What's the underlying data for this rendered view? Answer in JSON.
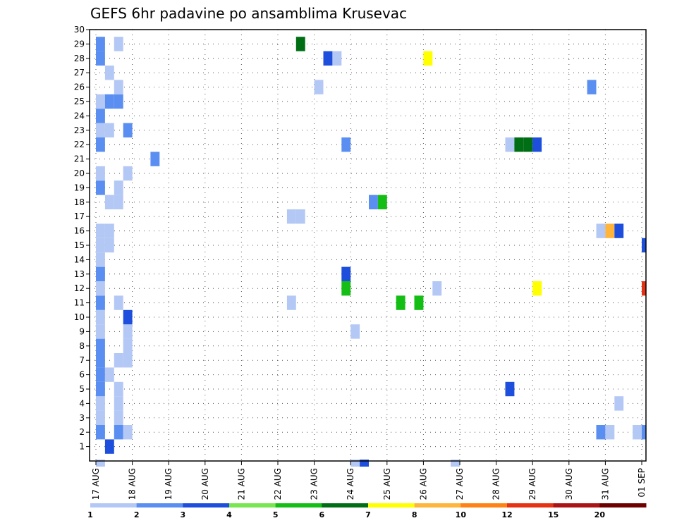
{
  "chart_data": {
    "type": "heatmap",
    "title": "GEFS 6hr padavine po ansamblima Krusevac",
    "xlabel": "",
    "ylabel": "",
    "x_tick_labels": [
      "17 AUG",
      "18 AUG",
      "19 AUG",
      "20 AUG",
      "21 AUG",
      "22 AUG",
      "23 AUG",
      "24 AUG",
      "25 AUG",
      "26 AUG",
      "27 AUG",
      "28 AUG",
      "29 AUG",
      "30 AUG",
      "31 AUG",
      "01 SEP"
    ],
    "y_range": [
      0,
      30
    ],
    "y_tick_labels": [
      "1",
      "2",
      "3",
      "4",
      "5",
      "6",
      "7",
      "8",
      "9",
      "10",
      "11",
      "12",
      "13",
      "14",
      "15",
      "16",
      "17",
      "18",
      "19",
      "20",
      "21",
      "22",
      "23",
      "24",
      "25",
      "26",
      "27",
      "28",
      "29",
      "30"
    ],
    "time_step_hours": 6,
    "grid": "dotted",
    "colorbar": {
      "labels": [
        "1",
        "2",
        "3",
        "4",
        "5",
        "6",
        "7",
        "8",
        "10",
        "12",
        "15",
        "20"
      ],
      "colors": [
        "#b4c8f5",
        "#5a8ef0",
        "#1e4fdc",
        "#78e650",
        "#14be14",
        "#006e14",
        "#ffff00",
        "#ffb43c",
        "#ff8214",
        "#e63214",
        "#aa1414",
        "#6e0000"
      ]
    },
    "cells": [
      {
        "m": 1,
        "t": 1,
        "v": 3
      },
      {
        "m": 2,
        "t": 0,
        "v": 2
      },
      {
        "m": 2,
        "t": 2,
        "v": 2
      },
      {
        "m": 2,
        "t": 3,
        "v": 1
      },
      {
        "m": 2,
        "t": 55,
        "v": 2
      },
      {
        "m": 2,
        "t": 56,
        "v": 1
      },
      {
        "m": 2,
        "t": 59,
        "v": 1
      },
      {
        "m": 2,
        "t": 60,
        "v": 2
      },
      {
        "m": 2,
        "t": 61,
        "v": 3
      },
      {
        "m": 3,
        "t": 0,
        "v": 1
      },
      {
        "m": 3,
        "t": 2,
        "v": 1
      },
      {
        "m": 4,
        "t": 0,
        "v": 1
      },
      {
        "m": 4,
        "t": 2,
        "v": 1
      },
      {
        "m": 4,
        "t": 57,
        "v": 1
      },
      {
        "m": 5,
        "t": 0,
        "v": 2
      },
      {
        "m": 5,
        "t": 2,
        "v": 1
      },
      {
        "m": 5,
        "t": 45,
        "v": 3
      },
      {
        "m": 6,
        "t": 0,
        "v": 2
      },
      {
        "m": 6,
        "t": 1,
        "v": 1
      },
      {
        "m": 7,
        "t": 0,
        "v": 2
      },
      {
        "m": 7,
        "t": 2,
        "v": 1
      },
      {
        "m": 7,
        "t": 3,
        "v": 1
      },
      {
        "m": 8,
        "t": 0,
        "v": 2
      },
      {
        "m": 8,
        "t": 3,
        "v": 1
      },
      {
        "m": 9,
        "t": 0,
        "v": 1
      },
      {
        "m": 9,
        "t": 3,
        "v": 1
      },
      {
        "m": 9,
        "t": 28,
        "v": 1
      },
      {
        "m": 10,
        "t": 0,
        "v": 1
      },
      {
        "m": 10,
        "t": 3,
        "v": 3
      },
      {
        "m": 11,
        "t": 0,
        "v": 2
      },
      {
        "m": 11,
        "t": 2,
        "v": 1
      },
      {
        "m": 11,
        "t": 21,
        "v": 1
      },
      {
        "m": 11,
        "t": 33,
        "v": 5
      },
      {
        "m": 11,
        "t": 35,
        "v": 5
      },
      {
        "m": 12,
        "t": 0,
        "v": 1
      },
      {
        "m": 12,
        "t": 27,
        "v": 5
      },
      {
        "m": 12,
        "t": 37,
        "v": 1
      },
      {
        "m": 12,
        "t": 48,
        "v": 7
      },
      {
        "m": 12,
        "t": 60,
        "v": 14
      },
      {
        "m": 12,
        "t": 61,
        "v": 10
      },
      {
        "m": 13,
        "t": 0,
        "v": 2
      },
      {
        "m": 13,
        "t": 27,
        "v": 3
      },
      {
        "m": 14,
        "t": 0,
        "v": 1
      },
      {
        "m": 15,
        "t": 0,
        "v": 1
      },
      {
        "m": 15,
        "t": 1,
        "v": 1
      },
      {
        "m": 15,
        "t": 60,
        "v": 3
      },
      {
        "m": 16,
        "t": 0,
        "v": 1
      },
      {
        "m": 16,
        "t": 1,
        "v": 1
      },
      {
        "m": 16,
        "t": 55,
        "v": 1
      },
      {
        "m": 16,
        "t": 56,
        "v": 9
      },
      {
        "m": 16,
        "t": 57,
        "v": 3
      },
      {
        "m": 17,
        "t": 21,
        "v": 1
      },
      {
        "m": 17,
        "t": 22,
        "v": 1
      },
      {
        "m": 18,
        "t": 1,
        "v": 1
      },
      {
        "m": 18,
        "t": 2,
        "v": 1
      },
      {
        "m": 18,
        "t": 30,
        "v": 2
      },
      {
        "m": 18,
        "t": 31,
        "v": 5
      },
      {
        "m": 19,
        "t": 0,
        "v": 2
      },
      {
        "m": 19,
        "t": 2,
        "v": 1
      },
      {
        "m": 20,
        "t": 0,
        "v": 1
      },
      {
        "m": 20,
        "t": 3,
        "v": 1
      },
      {
        "m": 21,
        "t": 6,
        "v": 2
      },
      {
        "m": 22,
        "t": 0,
        "v": 2
      },
      {
        "m": 22,
        "t": 27,
        "v": 2
      },
      {
        "m": 22,
        "t": 45,
        "v": 1
      },
      {
        "m": 22,
        "t": 46,
        "v": 6
      },
      {
        "m": 22,
        "t": 47,
        "v": 6
      },
      {
        "m": 22,
        "t": 48,
        "v": 3
      },
      {
        "m": 23,
        "t": 0,
        "v": 1
      },
      {
        "m": 23,
        "t": 1,
        "v": 1
      },
      {
        "m": 23,
        "t": 3,
        "v": 2
      },
      {
        "m": 24,
        "t": 0,
        "v": 2
      },
      {
        "m": 25,
        "t": 0,
        "v": 1
      },
      {
        "m": 25,
        "t": 1,
        "v": 2
      },
      {
        "m": 25,
        "t": 2,
        "v": 2
      },
      {
        "m": 26,
        "t": 2,
        "v": 1
      },
      {
        "m": 26,
        "t": 24,
        "v": 1
      },
      {
        "m": 26,
        "t": 54,
        "v": 2
      },
      {
        "m": 27,
        "t": 1,
        "v": 1
      },
      {
        "m": 28,
        "t": 0,
        "v": 2
      },
      {
        "m": 28,
        "t": 25,
        "v": 3
      },
      {
        "m": 28,
        "t": 26,
        "v": 1
      },
      {
        "m": 28,
        "t": 36,
        "v": 7
      },
      {
        "m": 29,
        "t": 0,
        "v": 2
      },
      {
        "m": 29,
        "t": 2,
        "v": 1
      },
      {
        "m": 29,
        "t": 22,
        "v": 6
      }
    ],
    "below_axis_cells": [
      {
        "t": 0,
        "v": 1
      },
      {
        "t": 28,
        "v": 1
      },
      {
        "t": 29,
        "v": 3
      },
      {
        "t": 39,
        "v": 1
      }
    ]
  }
}
